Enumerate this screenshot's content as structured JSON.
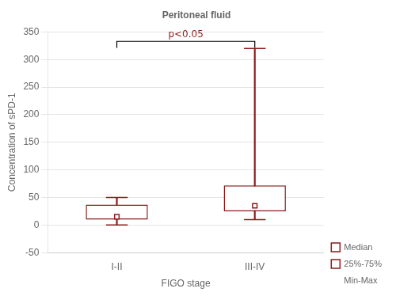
{
  "chart_data": {
    "type": "box",
    "title": "Peritoneal fluid",
    "xlabel": "FIGO stage",
    "ylabel": "Concentration of sPD-1",
    "categories": [
      "I-II",
      "III-IV"
    ],
    "boxes": [
      {
        "min": 0,
        "q1": 10,
        "median": 15,
        "q3": 37,
        "max": 50
      },
      {
        "min": 10,
        "q1": 25,
        "median": 35,
        "q3": 72,
        "max": 320
      }
    ],
    "legend_labels": [
      "Median",
      "25%-75%",
      "Min-Max"
    ],
    "color": "#8B1A1A",
    "ylim": [
      -50,
      350
    ],
    "yticks": [
      -50,
      0,
      50,
      100,
      150,
      200,
      250,
      300,
      350
    ],
    "grid": true,
    "legend": "right",
    "annotations": [
      {
        "type": "bracket",
        "from": "I-II",
        "to": "III-IV",
        "y": 333,
        "drop": 12,
        "text": "p<0.05",
        "text_y": 336
      }
    ]
  }
}
